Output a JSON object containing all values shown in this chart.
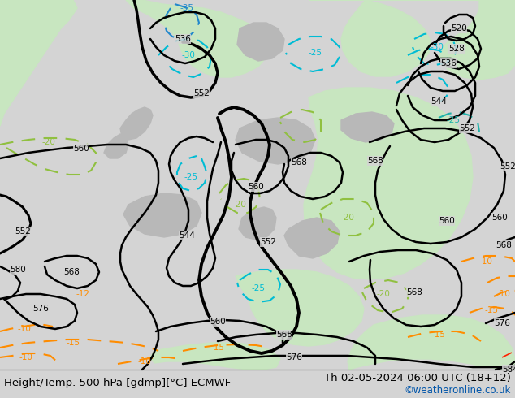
{
  "title_left": "Height/Temp. 500 hPa [gdmp][°C] ECMWF",
  "title_right": "Th 02-05-2024 06:00 UTC (18+12)",
  "credit": "©weatheronline.co.uk",
  "bg_color": "#d4d4d4",
  "land_green": "#c8e6c0",
  "land_grey": "#b8b8b8",
  "title_fontsize": 9.5,
  "credit_fontsize": 8.5,
  "label_fontsize": 7.5
}
